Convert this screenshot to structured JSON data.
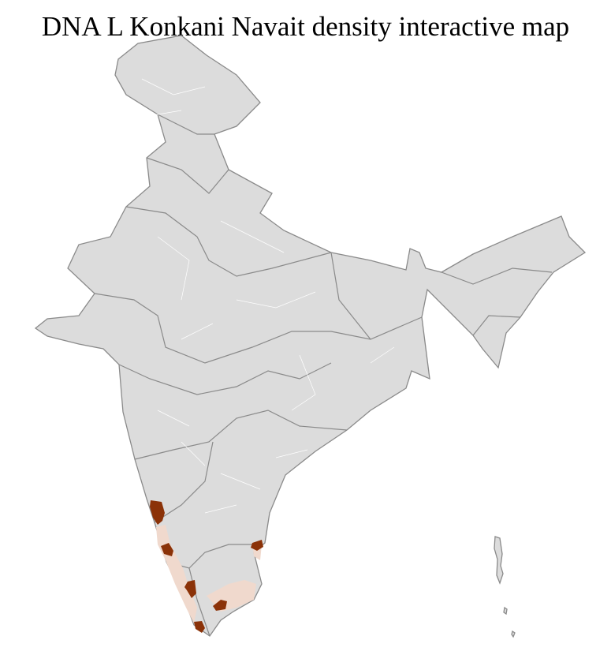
{
  "title": "DNA L Konkani Navait density interactive map",
  "colors": {
    "land": "#dcdcdc",
    "state_border": "#8a8a8a",
    "district_border": "#ffffff",
    "high_density": "#8b3208",
    "low_density": "#f0d9cd",
    "background": "#ffffff"
  }
}
